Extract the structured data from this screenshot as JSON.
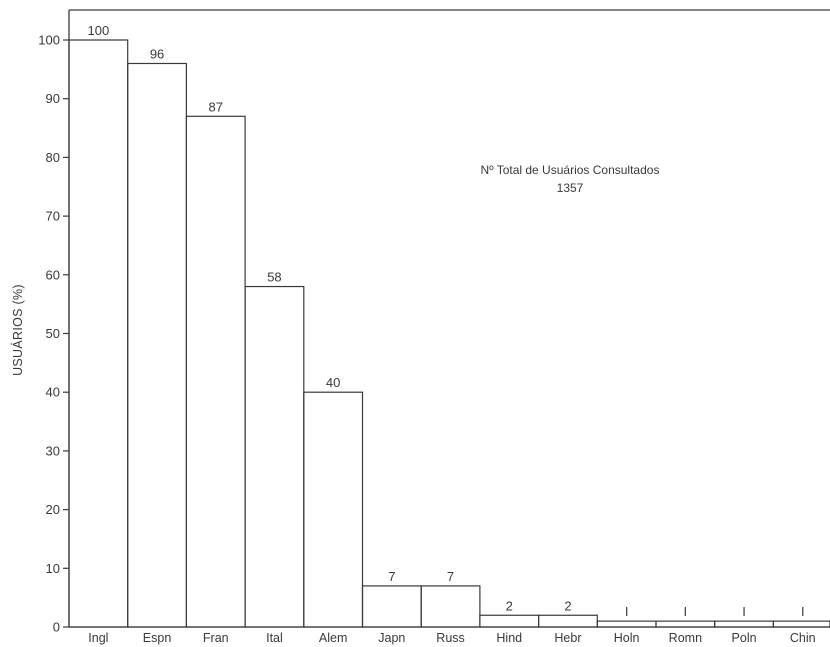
{
  "chart_data": {
    "type": "bar",
    "categories": [
      "Ingl",
      "Espn",
      "Fran",
      "Ital",
      "Alem",
      "Japn",
      "Russ",
      "Hind",
      "Hebr",
      "Holn",
      "Romn",
      "Poln",
      "Chin"
    ],
    "values": [
      100,
      96,
      87,
      58,
      40,
      7,
      7,
      2,
      2,
      1,
      1,
      1,
      1
    ],
    "data_labels": [
      "100",
      "96",
      "87",
      "58",
      "40",
      "7",
      "7",
      "2",
      "2",
      "I",
      "I",
      "I",
      "I"
    ],
    "yticks": [
      0,
      10,
      20,
      30,
      40,
      50,
      60,
      70,
      80,
      90,
      100
    ],
    "ylim": [
      0,
      105
    ],
    "ylabel": "USUÁRIOS (%)",
    "xlabel": "",
    "title": "",
    "annotation": {
      "line1": "Nº Total de Usuários Consultados",
      "line2": "1357"
    },
    "grid": false,
    "legend": "none",
    "colors": {
      "ink": "#3a3a3a",
      "background": "#ffffff"
    }
  }
}
